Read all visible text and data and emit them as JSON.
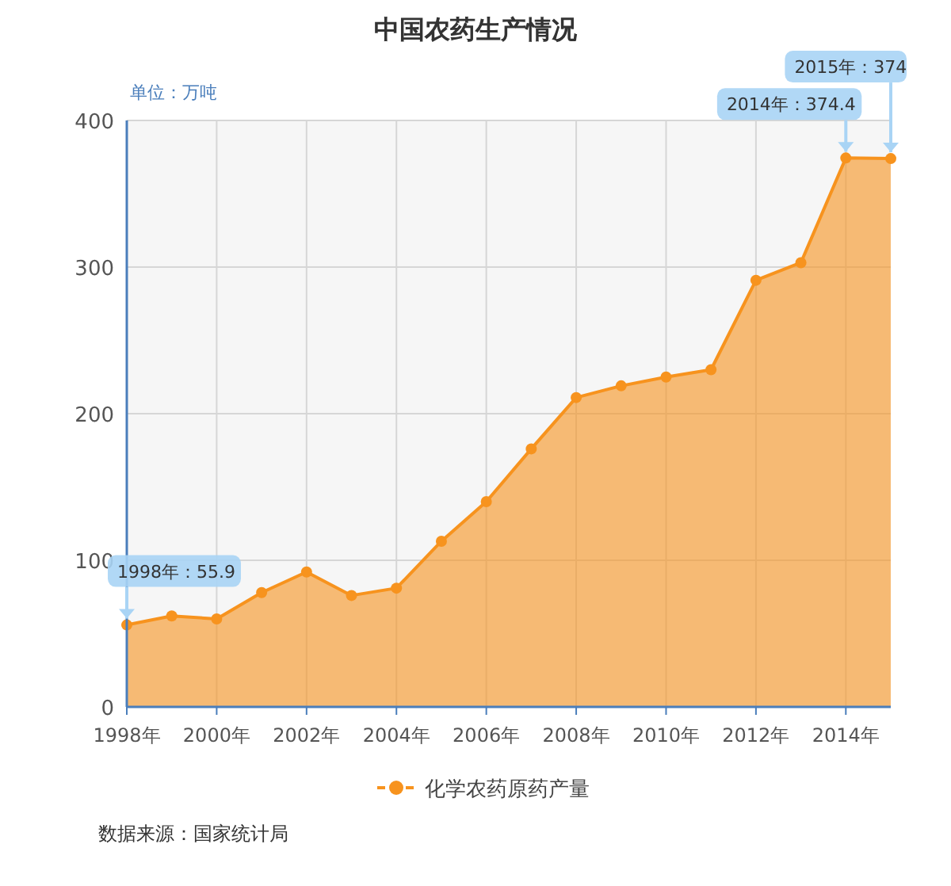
{
  "chart_data": {
    "type": "area",
    "title": "中国农药生产情况",
    "ylabel": "单位：万吨",
    "x": [
      1998,
      1999,
      2000,
      2001,
      2002,
      2003,
      2004,
      2005,
      2006,
      2007,
      2008,
      2009,
      2010,
      2011,
      2012,
      2013,
      2014,
      2015
    ],
    "series": [
      {
        "name": "化学农药原药产量",
        "color": "#f7931e",
        "values": [
          55.9,
          62,
          60,
          78,
          92,
          76,
          81,
          113,
          140,
          176,
          211,
          219,
          225,
          230,
          291,
          303,
          374.4,
          374
        ]
      }
    ],
    "xlim": [
      1998,
      2015
    ],
    "xticks": [
      {
        "value": 1998,
        "label": "1998年"
      },
      {
        "value": 2000,
        "label": "2000年"
      },
      {
        "value": 2002,
        "label": "2002年"
      },
      {
        "value": 2004,
        "label": "2004年"
      },
      {
        "value": 2006,
        "label": "2006年"
      },
      {
        "value": 2008,
        "label": "2008年"
      },
      {
        "value": 2010,
        "label": "2010年"
      },
      {
        "value": 2012,
        "label": "2012年"
      },
      {
        "value": 2014,
        "label": "2014年"
      }
    ],
    "ylim": [
      0,
      400
    ],
    "yticks": [
      0,
      100,
      200,
      300,
      400
    ],
    "grid": true,
    "legend": "bottom",
    "marker": "circle",
    "annotations": [
      {
        "text": "1998年：55.9",
        "x": 1998,
        "y": 55.9
      },
      {
        "text": "2014年：374.4",
        "x": 2014,
        "y": 374.4
      },
      {
        "text": "2015年：374",
        "x": 2015,
        "y": 374
      },
      "数据来源：国家统计局"
    ]
  }
}
